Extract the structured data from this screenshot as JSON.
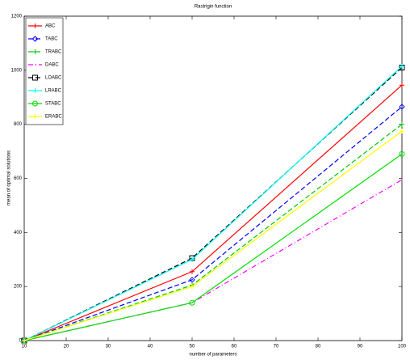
{
  "chart_data": {
    "type": "line",
    "title": "Rastrigin function",
    "x_label": "number of parameters",
    "y_label": "mean of optimal solutions",
    "x": [
      10,
      50,
      100
    ],
    "series": [
      {
        "name": "ABC",
        "color": "#ff0000",
        "style": "solid",
        "marker": "plus",
        "values": [
          0,
          255,
          945
        ]
      },
      {
        "name": "TABC",
        "color": "#0000ff",
        "style": "dashed",
        "marker": "diamond",
        "values": [
          0,
          225,
          865
        ]
      },
      {
        "name": "TRABC",
        "color": "#00cc00",
        "style": "dashed",
        "marker": "plus",
        "values": [
          0,
          205,
          800
        ]
      },
      {
        "name": "DABC",
        "color": "#ff00ff",
        "style": "dashdot",
        "marker": "none",
        "values": [
          0,
          140,
          595
        ]
      },
      {
        "name": "LOABC",
        "color": "#000000",
        "style": "dashed",
        "marker": "square",
        "values": [
          0,
          305,
          1010
        ]
      },
      {
        "name": "LRABC",
        "color": "#00ffff",
        "style": "solid",
        "marker": "plus",
        "values": [
          0,
          300,
          1015
        ]
      },
      {
        "name": "STABC",
        "color": "#00dd00",
        "style": "solid",
        "marker": "circle",
        "values": [
          0,
          140,
          690
        ]
      },
      {
        "name": "ERABC",
        "color": "#ffff00",
        "style": "solid",
        "marker": "plus",
        "values": [
          0,
          200,
          775
        ]
      }
    ],
    "xlim": [
      10,
      100
    ],
    "xticks": [
      10,
      20,
      30,
      40,
      50,
      60,
      70,
      80,
      90,
      100
    ],
    "ylim": [
      0,
      1200
    ],
    "yticks": [
      0,
      200,
      400,
      600,
      800,
      1000,
      1200
    ],
    "legend": "upper-left"
  }
}
